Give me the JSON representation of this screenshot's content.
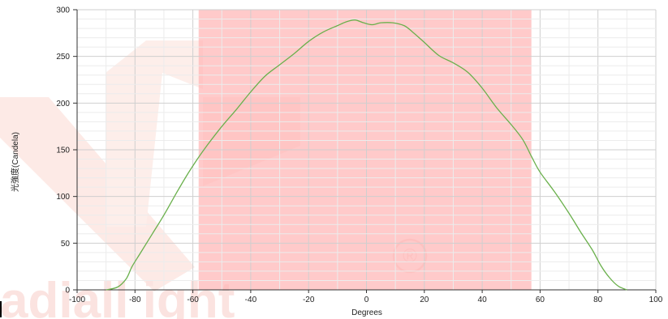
{
  "chart_data": {
    "type": "line",
    "xlabel": "Degrees",
    "ylabel": "光強度(Candela)",
    "xlim": [
      -100,
      100
    ],
    "ylim": [
      0,
      300
    ],
    "x_ticks": [
      -100,
      -80,
      -60,
      -40,
      -20,
      0,
      20,
      40,
      60,
      80,
      100
    ],
    "y_ticks": [
      0,
      50,
      100,
      150,
      200,
      250,
      300
    ],
    "grid": true,
    "highlight_band": {
      "x_start": -58,
      "x_end": 57,
      "color": "#ffb3b3"
    },
    "series": [
      {
        "color": "#6ab04c",
        "points": [
          [
            -90,
            0
          ],
          [
            -86,
            3
          ],
          [
            -83,
            12
          ],
          [
            -81,
            25
          ],
          [
            -78,
            40
          ],
          [
            -74,
            60
          ],
          [
            -70,
            80
          ],
          [
            -66,
            102
          ],
          [
            -62,
            123
          ],
          [
            -58,
            142
          ],
          [
            -55,
            155
          ],
          [
            -50,
            175
          ],
          [
            -45,
            193
          ],
          [
            -40,
            212
          ],
          [
            -35,
            229
          ],
          [
            -30,
            241
          ],
          [
            -25,
            253
          ],
          [
            -20,
            266
          ],
          [
            -15,
            276
          ],
          [
            -10,
            283
          ],
          [
            -7,
            287
          ],
          [
            -4,
            289
          ],
          [
            -1,
            286
          ],
          [
            2,
            284
          ],
          [
            5,
            286
          ],
          [
            9,
            286
          ],
          [
            13,
            283
          ],
          [
            16,
            276
          ],
          [
            20,
            265
          ],
          [
            25,
            251
          ],
          [
            30,
            243
          ],
          [
            35,
            233
          ],
          [
            40,
            216
          ],
          [
            45,
            195
          ],
          [
            50,
            177
          ],
          [
            54,
            161
          ],
          [
            57,
            143
          ],
          [
            60,
            126
          ],
          [
            65,
            105
          ],
          [
            70,
            82
          ],
          [
            74,
            62
          ],
          [
            78,
            43
          ],
          [
            81,
            26
          ],
          [
            84,
            13
          ],
          [
            87,
            4
          ],
          [
            90,
            0
          ]
        ]
      }
    ]
  },
  "watermark": {
    "brand_text": "adiall ight",
    "reg_mark": "®",
    "color": "#fbe3e0"
  }
}
